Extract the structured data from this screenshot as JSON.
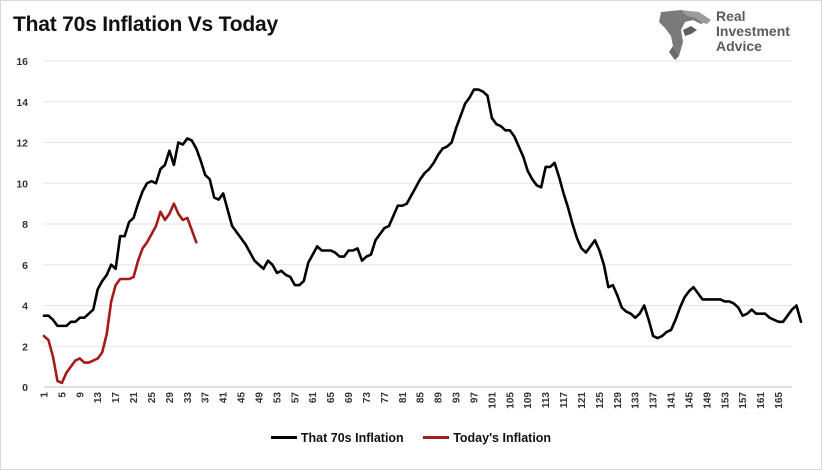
{
  "title": "That 70s Inflation Vs Today",
  "logo": {
    "lines": [
      "Real",
      "Investment",
      "Advice"
    ],
    "text_color": "#5b5b5b",
    "icon": "eagle-head-icon"
  },
  "chart_data": {
    "type": "line",
    "title": "That 70s Inflation Vs Today",
    "ylim": [
      0,
      16
    ],
    "y_ticks": [
      0,
      2,
      4,
      6,
      8,
      10,
      12,
      14,
      16
    ],
    "x_ticks": [
      1,
      5,
      9,
      13,
      17,
      21,
      25,
      29,
      33,
      37,
      41,
      45,
      49,
      53,
      57,
      61,
      65,
      69,
      73,
      77,
      81,
      85,
      89,
      93,
      97,
      101,
      105,
      109,
      113,
      117,
      121,
      125,
      129,
      133,
      137,
      141,
      145,
      149,
      153,
      157,
      161,
      165
    ],
    "xlim": [
      1,
      168
    ],
    "grid": "horizontal",
    "legend_position": "bottom",
    "series": [
      {
        "name": "That 70s Inflation",
        "color": "#000000",
        "values": [
          3.5,
          3.5,
          3.3,
          3.0,
          3.0,
          3.0,
          3.2,
          3.2,
          3.4,
          3.4,
          3.6,
          3.8,
          4.8,
          5.2,
          5.5,
          6.0,
          5.8,
          7.4,
          7.4,
          8.1,
          8.3,
          9.0,
          9.6,
          10.0,
          10.1,
          10.0,
          10.7,
          10.9,
          11.6,
          10.9,
          12.0,
          11.9,
          12.2,
          12.1,
          11.7,
          11.1,
          10.4,
          10.2,
          9.3,
          9.2,
          9.5,
          8.7,
          7.9,
          7.6,
          7.3,
          7.0,
          6.6,
          6.2,
          6.0,
          5.8,
          6.2,
          6.0,
          5.6,
          5.7,
          5.5,
          5.4,
          5.0,
          5.0,
          5.2,
          6.1,
          6.5,
          6.9,
          6.7,
          6.7,
          6.7,
          6.6,
          6.4,
          6.4,
          6.7,
          6.7,
          6.8,
          6.2,
          6.4,
          6.5,
          7.2,
          7.5,
          7.8,
          7.9,
          8.4,
          8.9,
          8.9,
          9.0,
          9.4,
          9.8,
          10.2,
          10.5,
          10.7,
          11.0,
          11.4,
          11.7,
          11.8,
          12.0,
          12.7,
          13.3,
          13.9,
          14.2,
          14.6,
          14.6,
          14.5,
          14.3,
          13.2,
          12.9,
          12.8,
          12.6,
          12.6,
          12.3,
          11.8,
          11.3,
          10.6,
          10.2,
          9.9,
          9.8,
          10.8,
          10.8,
          11.0,
          10.3,
          9.5,
          8.8,
          8.0,
          7.3,
          6.8,
          6.6,
          6.9,
          7.2,
          6.7,
          6.0,
          4.9,
          5.0,
          4.5,
          3.9,
          3.7,
          3.6,
          3.4,
          3.6,
          4.0,
          3.3,
          2.5,
          2.4,
          2.5,
          2.7,
          2.8,
          3.3,
          3.9,
          4.4,
          4.7,
          4.9,
          4.6,
          4.3,
          4.3,
          4.3,
          4.3,
          4.3,
          4.2,
          4.2,
          4.1,
          3.9,
          3.5,
          3.6,
          3.8,
          3.6,
          3.6,
          3.6,
          3.4,
          3.3,
          3.2,
          3.2,
          3.5,
          3.8,
          4.0,
          3.2
        ]
      },
      {
        "name": "Today's Inflation",
        "color": "#a51b1b",
        "values": [
          2.5,
          2.3,
          1.5,
          0.3,
          0.2,
          0.7,
          1.0,
          1.3,
          1.4,
          1.2,
          1.2,
          1.3,
          1.4,
          1.7,
          2.6,
          4.2,
          5.0,
          5.3,
          5.3,
          5.3,
          5.4,
          6.2,
          6.8,
          7.1,
          7.5,
          7.9,
          8.6,
          8.2,
          8.5,
          9.0,
          8.5,
          8.2,
          8.3,
          7.7,
          7.1
        ]
      }
    ]
  }
}
